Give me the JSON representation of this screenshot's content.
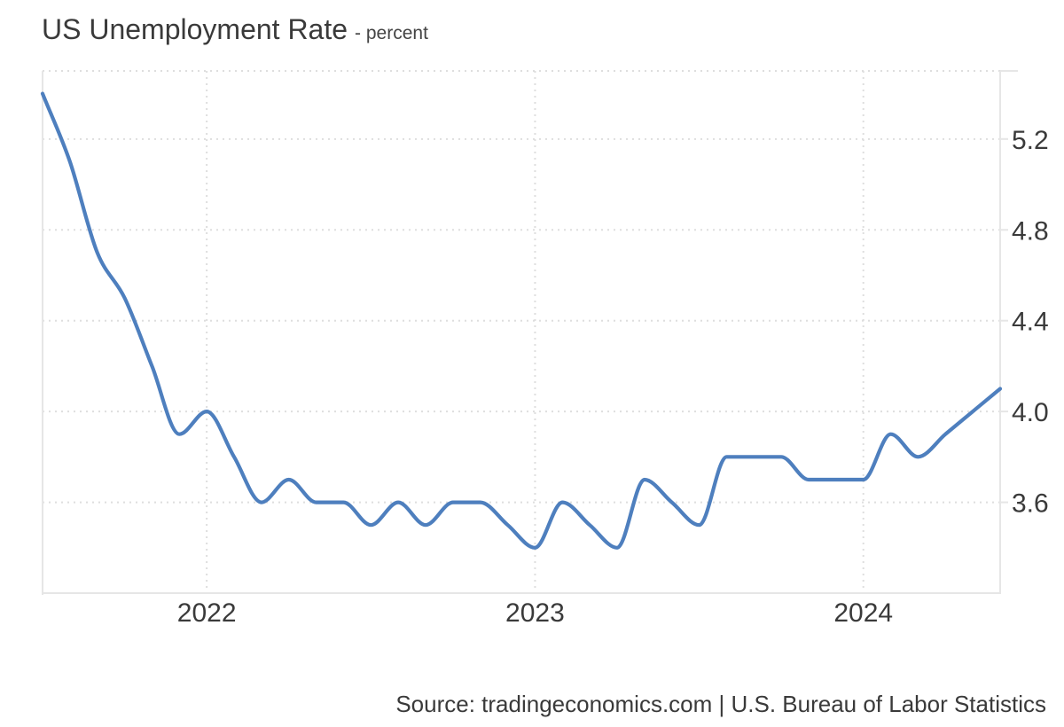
{
  "header": {
    "title": "US Unemployment Rate",
    "subtitle": "- percent"
  },
  "footer": {
    "source": "Source: tradingeconomics.com | U.S. Bureau of Labor Statistics"
  },
  "chart_data": {
    "type": "line",
    "title": "US Unemployment Rate",
    "subtitle": "- percent",
    "ylabel": "percent",
    "xlabel": "",
    "legend": "none",
    "grid": "dotted",
    "y_axis_side": "right",
    "ylim": [
      3.2,
      5.5
    ],
    "y_ticks": [
      3.6,
      4.0,
      4.4,
      4.8,
      5.2
    ],
    "x_tick_labels": [
      "2022",
      "2023",
      "2024"
    ],
    "x_tick_positions": [
      "2022-01",
      "2023-01",
      "2024-01"
    ],
    "x": [
      "2021-07",
      "2021-08",
      "2021-09",
      "2021-10",
      "2021-11",
      "2021-12",
      "2022-01",
      "2022-02",
      "2022-03",
      "2022-04",
      "2022-05",
      "2022-06",
      "2022-07",
      "2022-08",
      "2022-09",
      "2022-10",
      "2022-11",
      "2022-12",
      "2023-01",
      "2023-02",
      "2023-03",
      "2023-04",
      "2023-05",
      "2023-06",
      "2023-07",
      "2023-08",
      "2023-09",
      "2023-10",
      "2023-11",
      "2023-12",
      "2024-01",
      "2024-02",
      "2024-03",
      "2024-04",
      "2024-05",
      "2024-06"
    ],
    "values": [
      5.4,
      5.1,
      4.7,
      4.5,
      4.2,
      3.9,
      4.0,
      3.8,
      3.6,
      3.7,
      3.6,
      3.6,
      3.5,
      3.6,
      3.5,
      3.6,
      3.6,
      3.5,
      3.4,
      3.6,
      3.5,
      3.4,
      3.7,
      3.6,
      3.5,
      3.8,
      3.8,
      3.8,
      3.7,
      3.7,
      3.7,
      3.9,
      3.8,
      3.9,
      4.0,
      4.1
    ],
    "colors": {
      "line": "#4e7fbe",
      "grid": "#dedede",
      "border": "#e6e6e6",
      "text": "#3a3a3a",
      "background": "#ffffff"
    }
  }
}
